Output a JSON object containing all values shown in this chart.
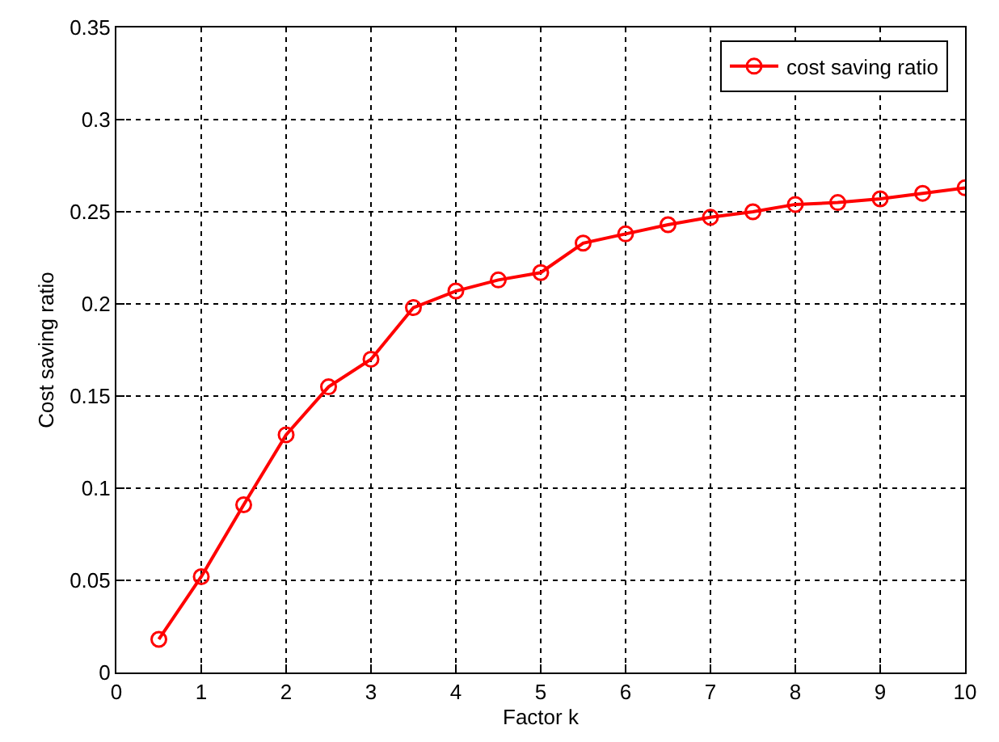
{
  "chart_data": {
    "type": "line",
    "xlabel": "Factor k",
    "ylabel": "Cost saving ratio",
    "x": [
      0.5,
      1,
      1.5,
      2,
      2.5,
      3,
      3.5,
      4,
      4.5,
      5,
      5.5,
      6,
      6.5,
      7,
      7.5,
      8,
      8.5,
      9,
      9.5,
      10
    ],
    "series": [
      {
        "name": "cost saving ratio",
        "color": "#ff0000",
        "values": [
          0.018,
          0.052,
          0.091,
          0.129,
          0.155,
          0.17,
          0.198,
          0.207,
          0.213,
          0.217,
          0.233,
          0.238,
          0.243,
          0.247,
          0.25,
          0.254,
          0.255,
          0.257,
          0.26,
          0.263
        ]
      }
    ],
    "xlim": [
      0,
      10
    ],
    "xticks": [
      0,
      1,
      2,
      3,
      4,
      5,
      6,
      7,
      8,
      9,
      10
    ],
    "ylim": [
      0,
      0.35
    ],
    "yticks": [
      0,
      0.05,
      0.1,
      0.15,
      0.2,
      0.25,
      0.3,
      0.35
    ],
    "grid": true,
    "legend": "top right",
    "marker": "circle",
    "line_style": "solid"
  }
}
